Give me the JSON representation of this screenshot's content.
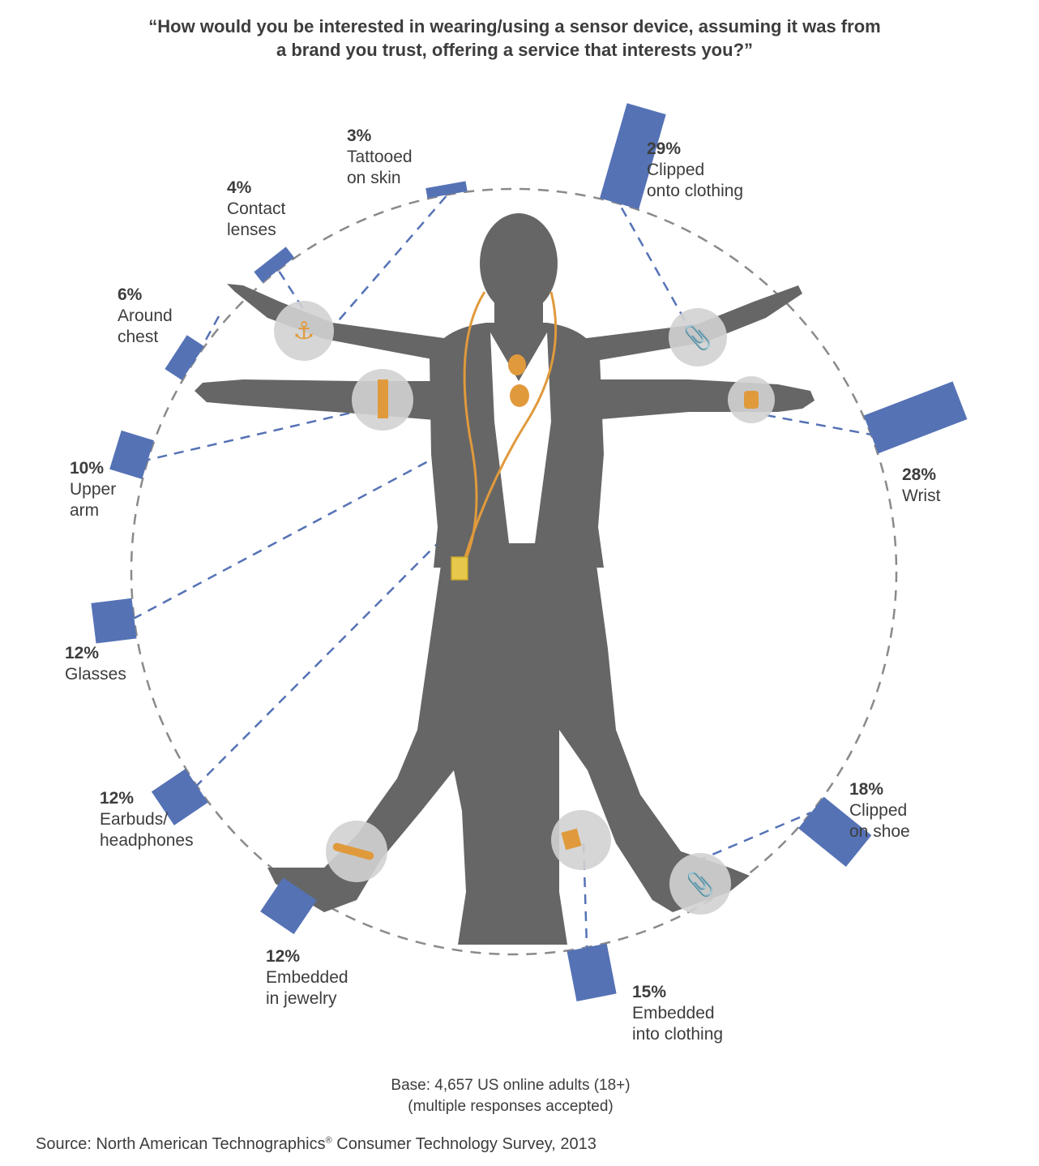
{
  "title": {
    "line1": "“How would you be interested in wearing/using a sensor device, assuming it was from",
    "line2": "a brand you trust, offering a service that interests you?”"
  },
  "chart_data": {
    "type": "bar",
    "categories": [
      "Clipped onto clothing",
      "Wrist",
      "Clipped on shoe",
      "Embedded into clothing",
      "Embedded in jewelry",
      "Earbuds/ headphones",
      "Glasses",
      "Upper arm",
      "Around chest",
      "Contact lenses",
      "Tattooed on skin"
    ],
    "values": [
      29,
      28,
      18,
      15,
      12,
      12,
      12,
      10,
      6,
      4,
      3
    ],
    "unit": "%",
    "labels": [
      {
        "pct": "29%",
        "lines": [
          "Clipped",
          "onto clothing"
        ]
      },
      {
        "pct": "28%",
        "lines": [
          "Wrist"
        ]
      },
      {
        "pct": "18%",
        "lines": [
          "Clipped",
          "on shoe"
        ]
      },
      {
        "pct": "15%",
        "lines": [
          "Embedded",
          "into clothing"
        ]
      },
      {
        "pct": "12%",
        "lines": [
          "Embedded",
          "in jewelry"
        ]
      },
      {
        "pct": "12%",
        "lines": [
          "Earbuds/",
          "headphones"
        ]
      },
      {
        "pct": "12%",
        "lines": [
          "Glasses"
        ]
      },
      {
        "pct": "10%",
        "lines": [
          "Upper",
          "arm"
        ]
      },
      {
        "pct": "6%",
        "lines": [
          "Around",
          "chest"
        ]
      },
      {
        "pct": "4%",
        "lines": [
          "Contact",
          "lenses"
        ]
      },
      {
        "pct": "3%",
        "lines": [
          "Tattooed",
          "on skin"
        ]
      }
    ],
    "bar_color": "#5572b5",
    "figure_color": "#666666",
    "accent_color": "#e09a3c"
  },
  "footer": {
    "base_line1": "Base: 4,657 US online adults (18+)",
    "base_line2": "(multiple responses accepted)",
    "source_prefix": "Source: North American Technographics",
    "source_mark": "®",
    "source_suffix": " Consumer Technology Survey, 2013"
  }
}
